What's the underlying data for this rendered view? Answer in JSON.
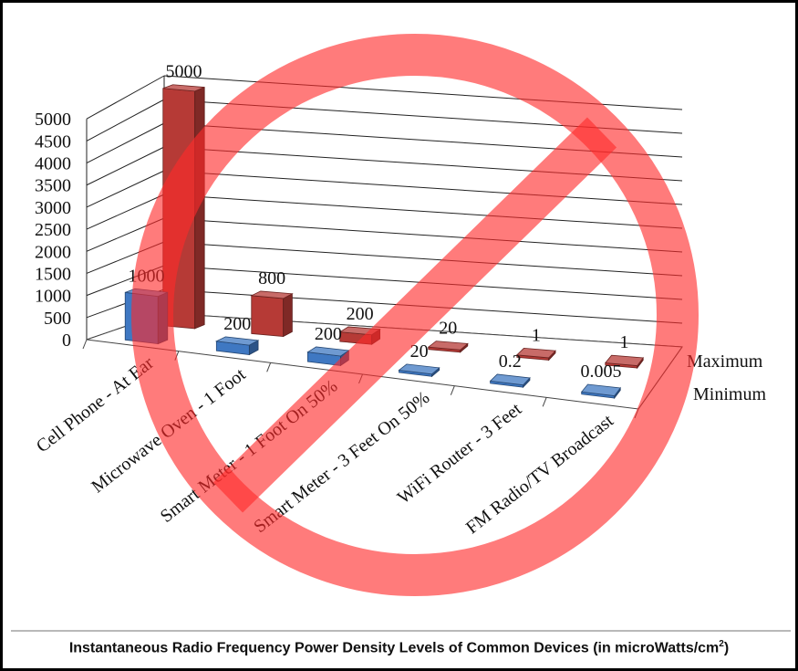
{
  "chart_data": {
    "type": "bar",
    "style": "3d-clustered-column",
    "categories": [
      "Cell Phone - At Ear",
      "Microwave Oven - 1 Foot",
      "Smart Meter - 1 Foot On 50%",
      "Smart Meter - 3 Feet On 50%",
      "WiFi Router - 3 Feet",
      "FM Radio/TV Broadcast"
    ],
    "series": [
      {
        "name": "Maximum",
        "values": [
          5000,
          800,
          200,
          20,
          1,
          1
        ],
        "labels": [
          "5000",
          "800",
          "200",
          "20",
          "1",
          "1"
        ],
        "color": "#b63a36"
      },
      {
        "name": "Minimum",
        "values": [
          1000,
          200,
          200,
          20,
          0.2,
          0.005
        ],
        "labels": [
          "1000",
          "200",
          "200",
          "20",
          "0.2",
          "0.005"
        ],
        "color": "#3f78c2"
      }
    ],
    "yticks": [
      "0",
      "500",
      "1000",
      "1500",
      "2000",
      "2500",
      "3000",
      "3500",
      "4000",
      "4500",
      "5000"
    ],
    "ylim": [
      0,
      5000
    ],
    "grid": true,
    "legend_position": "right",
    "title": "Instantaneous Radio Frequency Power Density Levels of Common Devices (in microWatts/cm",
    "title_superscript": "2",
    "title_suffix": ")",
    "overlay": "prohibition-sign",
    "overlay_color": "#ff2a2a"
  }
}
